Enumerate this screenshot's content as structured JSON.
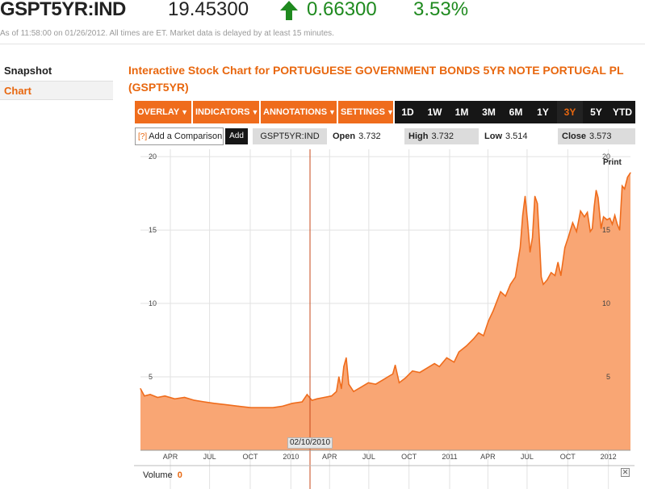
{
  "ticker": {
    "symbol": "GSPT5YR:IND",
    "price": "19.45300",
    "change": "0.66300",
    "change_pct": "3.53%",
    "direction": "up",
    "up_color": "#1f8a1f",
    "asof": "As of 11:58:00 on 01/26/2012. All times are ET. Market data is delayed by at least 15 minutes."
  },
  "sidenav": {
    "items": [
      {
        "label": "Snapshot",
        "active": false
      },
      {
        "label": "Chart",
        "active": true
      }
    ]
  },
  "chart_title": "Interactive Stock Chart for PORTUGUESE GOVERNMENT BONDS 5YR NOTE PORTUGAL PL (GSPT5YR)",
  "toolbar": {
    "menus": [
      {
        "label": "OVERLAY",
        "icon": "caret-down-icon"
      },
      {
        "label": "INDICATORS",
        "icon": "caret-down-icon"
      },
      {
        "label": "ANNOTATIONS",
        "icon": "caret-down-icon"
      },
      {
        "label": "SETTINGS",
        "icon": "caret-down-icon"
      }
    ],
    "ranges": [
      "1D",
      "1W",
      "1M",
      "3M",
      "6M",
      "1Y",
      "3Y",
      "5Y",
      "YTD"
    ],
    "active_range": "3Y",
    "accent_color": "#ef6c1c"
  },
  "info_row": {
    "help_marker": "[?]",
    "compare_placeholder": "Add a Comparison",
    "add_label": "Add",
    "symbol": "GSPT5YR:IND",
    "open_label": "Open",
    "open": "3.732",
    "high_label": "High",
    "high": "3.732",
    "low_label": "Low",
    "low": "3.514",
    "close_label": "Close",
    "close": "3.573"
  },
  "print_label": "Print",
  "crosshair_date": "02/10/2010",
  "volume": {
    "label": "Volume",
    "value": "0",
    "close_icon": "close-icon",
    "close_glyph": "✕"
  },
  "chart_data": {
    "type": "area",
    "series_color": "#ef6c1c",
    "fill_color": "#f9a674",
    "ylim": [
      0,
      20.5
    ],
    "y_ticks": [
      5,
      10,
      15,
      20
    ],
    "x_ticks": [
      {
        "label": "APR",
        "t": 0.061
      },
      {
        "label": "JUL",
        "t": 0.141
      },
      {
        "label": "OCT",
        "t": 0.224
      },
      {
        "label": "2010",
        "t": 0.307
      },
      {
        "label": "APR",
        "t": 0.386
      },
      {
        "label": "JUL",
        "t": 0.466
      },
      {
        "label": "OCT",
        "t": 0.548
      },
      {
        "label": "2011",
        "t": 0.631
      },
      {
        "label": "APR",
        "t": 0.709
      },
      {
        "label": "JUL",
        "t": 0.789
      },
      {
        "label": "OCT",
        "t": 0.872
      },
      {
        "label": "2012",
        "t": 0.955
      }
    ],
    "crosshair_t": 0.346,
    "points": [
      [
        0.0,
        4.2
      ],
      [
        0.008,
        3.7
      ],
      [
        0.02,
        3.8
      ],
      [
        0.035,
        3.6
      ],
      [
        0.05,
        3.7
      ],
      [
        0.07,
        3.5
      ],
      [
        0.09,
        3.6
      ],
      [
        0.11,
        3.4
      ],
      [
        0.13,
        3.3
      ],
      [
        0.15,
        3.2
      ],
      [
        0.175,
        3.1
      ],
      [
        0.2,
        3.0
      ],
      [
        0.225,
        2.9
      ],
      [
        0.25,
        2.9
      ],
      [
        0.27,
        2.9
      ],
      [
        0.29,
        3.0
      ],
      [
        0.31,
        3.2
      ],
      [
        0.33,
        3.3
      ],
      [
        0.34,
        3.8
      ],
      [
        0.35,
        3.4
      ],
      [
        0.36,
        3.5
      ],
      [
        0.375,
        3.6
      ],
      [
        0.39,
        3.7
      ],
      [
        0.4,
        4.0
      ],
      [
        0.405,
        5.0
      ],
      [
        0.41,
        4.2
      ],
      [
        0.415,
        5.7
      ],
      [
        0.42,
        6.3
      ],
      [
        0.425,
        4.5
      ],
      [
        0.435,
        4.0
      ],
      [
        0.45,
        4.3
      ],
      [
        0.465,
        4.6
      ],
      [
        0.48,
        4.5
      ],
      [
        0.495,
        4.8
      ],
      [
        0.505,
        5.0
      ],
      [
        0.515,
        5.2
      ],
      [
        0.52,
        5.8
      ],
      [
        0.528,
        4.6
      ],
      [
        0.54,
        4.9
      ],
      [
        0.555,
        5.4
      ],
      [
        0.57,
        5.3
      ],
      [
        0.585,
        5.6
      ],
      [
        0.6,
        5.9
      ],
      [
        0.61,
        5.7
      ],
      [
        0.625,
        6.3
      ],
      [
        0.64,
        6.0
      ],
      [
        0.65,
        6.7
      ],
      [
        0.665,
        7.1
      ],
      [
        0.68,
        7.6
      ],
      [
        0.69,
        8.0
      ],
      [
        0.7,
        7.8
      ],
      [
        0.71,
        8.8
      ],
      [
        0.72,
        9.5
      ],
      [
        0.735,
        10.8
      ],
      [
        0.745,
        10.5
      ],
      [
        0.755,
        11.3
      ],
      [
        0.765,
        11.8
      ],
      [
        0.775,
        13.8
      ],
      [
        0.78,
        16.0
      ],
      [
        0.785,
        17.3
      ],
      [
        0.79,
        15.6
      ],
      [
        0.795,
        13.5
      ],
      [
        0.8,
        14.5
      ],
      [
        0.805,
        17.3
      ],
      [
        0.81,
        16.8
      ],
      [
        0.815,
        13.8
      ],
      [
        0.818,
        11.8
      ],
      [
        0.822,
        11.3
      ],
      [
        0.83,
        11.6
      ],
      [
        0.838,
        12.1
      ],
      [
        0.846,
        11.9
      ],
      [
        0.852,
        12.8
      ],
      [
        0.858,
        11.9
      ],
      [
        0.866,
        13.8
      ],
      [
        0.874,
        14.6
      ],
      [
        0.882,
        15.5
      ],
      [
        0.89,
        14.9
      ],
      [
        0.898,
        16.3
      ],
      [
        0.906,
        15.9
      ],
      [
        0.912,
        16.2
      ],
      [
        0.918,
        14.9
      ],
      [
        0.922,
        15.1
      ],
      [
        0.926,
        16.6
      ],
      [
        0.93,
        17.7
      ],
      [
        0.934,
        17.2
      ],
      [
        0.94,
        15.1
      ],
      [
        0.945,
        15.9
      ],
      [
        0.952,
        15.7
      ],
      [
        0.958,
        15.8
      ],
      [
        0.963,
        15.4
      ],
      [
        0.968,
        16.0
      ],
      [
        0.973,
        15.4
      ],
      [
        0.978,
        15.0
      ],
      [
        0.983,
        18.0
      ],
      [
        0.988,
        17.8
      ],
      [
        0.994,
        18.6
      ],
      [
        1.0,
        18.9
      ]
    ]
  }
}
